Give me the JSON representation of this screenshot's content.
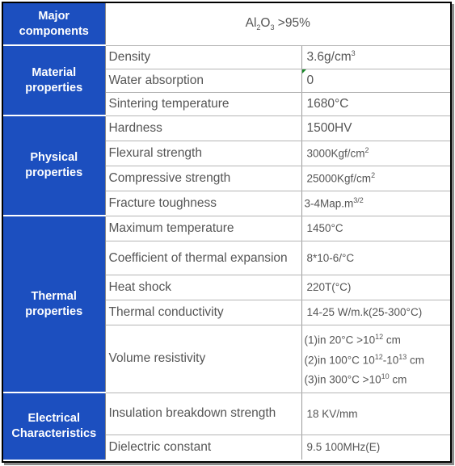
{
  "major": {
    "label": "Major components",
    "value_main": "Al",
    "value_sub": "2",
    "value_mid": "O",
    "value_sub2": "3",
    "value_rest": " >95%"
  },
  "material": {
    "label": "Material properties",
    "rows": [
      {
        "prop": "Density",
        "val": "3.6g/cm",
        "sup": "3"
      },
      {
        "prop": "Water absorption",
        "val": "0"
      },
      {
        "prop": "Sintering temperature",
        "val": "1680°C"
      }
    ]
  },
  "physical": {
    "label": "Physical properties",
    "rows": [
      {
        "prop": "Hardness",
        "val": "1500HV"
      },
      {
        "prop": "Flexural strength",
        "val": "3000Kgf/cm",
        "sup": "2"
      },
      {
        "prop": "Compressive strength",
        "val": "25000Kgf/cm",
        "sup": "2"
      },
      {
        "prop": "Fracture toughness",
        "val": "3-4Map.m",
        "sup": "3/2"
      }
    ]
  },
  "thermal": {
    "label": "Thermal properties",
    "rows": [
      {
        "prop": "Maximum temperature",
        "val": "1450°C"
      },
      {
        "prop": "Coefficient of thermal expansion",
        "val": "8*10-6/°C"
      },
      {
        "prop": "Heat shock",
        "val": "220T(°C)"
      },
      {
        "prop": "Thermal conductivity",
        "val": "14-25 W/m.k(25-300°C)"
      }
    ],
    "volume": {
      "prop": "Volume resistivity",
      "line1_a": "(1)in 20°C >10",
      "line1_sup": "12",
      "line1_b": " cm",
      "line2_a": "(2)in 100°C  10",
      "line2_sup": "12",
      "line2_b": "-10",
      "line2_sup2": "13",
      "line2_c": " cm",
      "line3_a": "(3)in 300°C  >10",
      "line3_sup": "10",
      "line3_b": " cm"
    }
  },
  "electrical": {
    "label": "Electrical Characteristics",
    "rows": [
      {
        "prop": "Insulation breakdown strength",
        "val": "18  KV/mm"
      },
      {
        "prop": "Dielectric constant",
        "val": "9.5  100MHz(E)"
      }
    ]
  }
}
